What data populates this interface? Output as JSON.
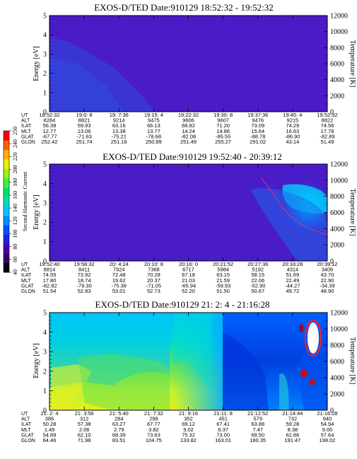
{
  "panels": [
    {
      "title": "EXOS-D/TED   Date:910129   18:52:32 - 19:52:32",
      "ylabel": "Energy [eV]",
      "y2label": "Temperature [K]",
      "energy_ticks": [
        "0",
        "1",
        "2",
        "3",
        "4",
        "5"
      ],
      "temp_ticks": [
        "0",
        "2000",
        "4000",
        "6000",
        "8000",
        "10000",
        "12000"
      ],
      "ephem_keys": [
        "UT",
        "ALT",
        "ILAT",
        "MLT",
        "GLAT",
        "GLON"
      ],
      "ephem": [
        [
          "18:52:32",
          "8284",
          "56.38",
          "12.77",
          "-67.77",
          "252.42"
        ],
        [
          "19:0: 8",
          "8821",
          "59.93",
          "13.06",
          "-71.63",
          "251.74"
        ],
        [
          "19: 7:36",
          "9214",
          "63.16",
          "13.38",
          "-75.21",
          "251.16"
        ],
        [
          "19:15: 4",
          "9475",
          "66.13",
          "13.77",
          "-78.68",
          "250.89"
        ],
        [
          "19:22:32",
          "9606",
          "68.82",
          "14.24",
          "-82.08",
          "251.49"
        ],
        [
          "19:30: 8",
          "9607",
          "71.20",
          "14.86",
          "-85.55",
          "255.27"
        ],
        [
          "19:37:36",
          "9476",
          "73.09",
          "15.64",
          "-88.78",
          "291.02"
        ],
        [
          "19:45: 4",
          "9215",
          "74.29",
          "16.63",
          "-86.90",
          "43.14"
        ],
        [
          "19:52:32",
          "8822",
          "74.56",
          "17.78",
          "-82.89",
          "51.49"
        ]
      ]
    },
    {
      "title": "EXOS-D/TED   Date:910129   19:52:40 - 20:39:12",
      "ylabel": "Energy [eV]",
      "y2label": "Temperature [K]",
      "energy_ticks": [
        "0",
        "1",
        "2",
        "3",
        "4",
        "5"
      ],
      "temp_ticks": [
        "0",
        "2000",
        "4000",
        "6000",
        "8000",
        "10000",
        "12000"
      ],
      "ephem_keys": [
        "UT",
        "ALT",
        "ILAT",
        "MLT",
        "GLAT",
        "GLON"
      ],
      "ephem": [
        [
          "19:52:40",
          "8814",
          "74.55",
          "17.80",
          "-82.82",
          "51.54"
        ],
        [
          "19:58:32",
          "8411",
          "73.92",
          "18.74",
          "-79.30",
          "52.83"
        ],
        [
          "20: 4:24",
          "7924",
          "72.48",
          "19.62",
          "-75.38",
          "53.01"
        ],
        [
          "20:10: 8",
          "7368",
          "70.28",
          "20.37",
          "-71.05",
          "52.73"
        ],
        [
          "20:16: 0",
          "6717",
          "67.18",
          "21.03",
          "-65.94",
          "52.20"
        ],
        [
          "20:21:52",
          "5984",
          "63.15",
          "21.59",
          "-59.93",
          "51.50"
        ],
        [
          "20:27:36",
          "5192",
          "58.15",
          "22.06",
          "-52.90",
          "50.67"
        ],
        [
          "20:33:28",
          "4314",
          "51.69",
          "22.49",
          "-44.27",
          "49.72"
        ],
        [
          "20:39:12",
          "3406",
          "43.70",
          "22.90",
          "-34.39",
          "48.90"
        ]
      ]
    },
    {
      "title": "EXOS-D/TED   Date:910129   21: 2: 4 - 21:16:28",
      "ylabel": "Energy [eV]",
      "y2label": "Temperature [K]",
      "energy_ticks": [
        "0",
        "1",
        "2",
        "3",
        "4",
        "5"
      ],
      "temp_ticks": [
        "0",
        "2000",
        "4000",
        "6000",
        "8000",
        "10000",
        "12000"
      ],
      "ephem_keys": [
        "UT",
        "ALT",
        "ILAT",
        "MLT",
        "GLAT",
        "GLON"
      ],
      "ephem": [
        [
          "21: 2: 4",
          "386",
          "50.28",
          "1.49",
          "54.89",
          "64.46"
        ],
        [
          "21: 3:56",
          "312",
          "57.38",
          "2.06",
          "62.10",
          "71.98"
        ],
        [
          "21: 5:40",
          "284",
          "63.27",
          "2.79",
          "68.39",
          "83.51"
        ],
        [
          "21: 7:32",
          "298",
          "67.77",
          "3.82",
          "73.63",
          "104.75"
        ],
        [
          "21: 9:16",
          "352",
          "69.12",
          "5.02",
          "75.32",
          "133.82"
        ],
        [
          "21:11: 8",
          "451",
          "67.41",
          "6.37",
          "73.00",
          "163.01"
        ],
        [
          "21:12:52",
          "579",
          "63.88",
          "7.47",
          "68.50",
          "180.35"
        ],
        [
          "21:14:44",
          "732",
          "59.28",
          "8.38",
          "62.86",
          "191.47"
        ],
        [
          "21:16:28",
          "940",
          "54.94",
          "9.00",
          "57.64",
          "198.02"
        ]
      ]
    }
  ],
  "colorbar": {
    "label": "Second Harmonic Current",
    "ticks": [
      "40",
      "60",
      "80",
      "100",
      "120",
      "140",
      "160",
      "180",
      "200",
      "220",
      "240",
      "250"
    ],
    "colors": [
      "#000000",
      "#3a0060",
      "#4a00a8",
      "#2020e0",
      "#0050ff",
      "#0090ff",
      "#00c8ff",
      "#00e0c0",
      "#00e070",
      "#40f040",
      "#a0f020",
      "#e8f000",
      "#ffb000",
      "#ff6000",
      "#ff0000"
    ]
  },
  "chart_data": [
    {
      "type": "heatmap",
      "title": "EXOS-D/TED   Date:910129   18:52:32 - 19:52:32",
      "ylabel": "Energy [eV]",
      "y2label": "Temperature [K]",
      "ylim": [
        0,
        5
      ],
      "y2lim": [
        0,
        12000
      ],
      "description_color": "nearly uniform dark blue background with faint lighter wedge near left at 1-3 eV"
    },
    {
      "type": "heatmap",
      "title": "EXOS-D/TED   Date:910129   19:52:40 - 20:39:12",
      "ylabel": "Energy [eV]",
      "y2label": "Temperature [K]",
      "ylim": [
        0,
        5
      ],
      "y2lim": [
        0,
        12000
      ],
      "temperature_trace_K": [
        [
          0.72,
          10800
        ],
        [
          0.8,
          9400
        ],
        [
          0.88,
          8000
        ],
        [
          0.94,
          6500
        ],
        [
          1.0,
          5000
        ]
      ]
    },
    {
      "type": "heatmap",
      "title": "EXOS-D/TED   Date:910129   21: 2: 4 - 21:16:28",
      "ylabel": "Energy [eV]",
      "y2label": "Temperature [K]",
      "ylim": [
        0,
        5
      ],
      "y2lim": [
        0,
        12000
      ]
    }
  ]
}
